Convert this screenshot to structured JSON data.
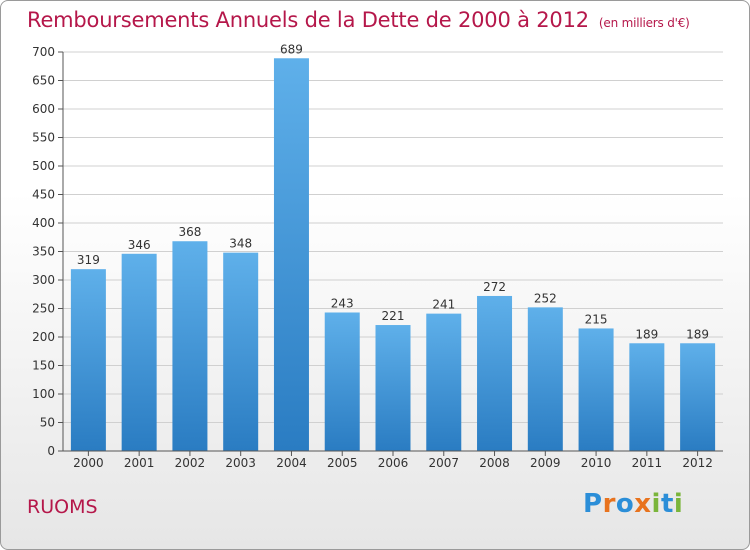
{
  "title": "Remboursements Annuels de la Dette de 2000 à 2012",
  "subtitle": "(en milliers d'€)",
  "commune": "RUOMS",
  "logo": {
    "letters": [
      "P",
      "r",
      "o",
      "x",
      "i",
      "t",
      "i"
    ],
    "colors": [
      "#2b8ed8",
      "#e8731e",
      "#2b8ed8",
      "#e8731e",
      "#7ab53b",
      "#2b8ed8",
      "#7ab53b"
    ]
  },
  "colors": {
    "bar_top": "#5fb0ea",
    "bar_bottom": "#2a7cc2",
    "title": "#b5174a"
  },
  "chart_data": {
    "type": "bar",
    "categories": [
      "2000",
      "2001",
      "2002",
      "2003",
      "2004",
      "2005",
      "2006",
      "2007",
      "2008",
      "2009",
      "2010",
      "2011",
      "2012"
    ],
    "values": [
      319,
      346,
      368,
      348,
      689,
      243,
      221,
      241,
      272,
      252,
      215,
      189,
      189
    ],
    "data_labels": [
      "319",
      "346",
      "368",
      "348",
      "689",
      "243",
      "221",
      "241",
      "272",
      "252",
      "215",
      "189",
      "189"
    ],
    "ylim": [
      0,
      700
    ],
    "yticks": [
      "0",
      "50",
      "100",
      "150",
      "200",
      "250",
      "300",
      "350",
      "400",
      "450",
      "500",
      "550",
      "600",
      "650",
      "700"
    ],
    "grid": true,
    "xlabel": "",
    "ylabel": ""
  }
}
